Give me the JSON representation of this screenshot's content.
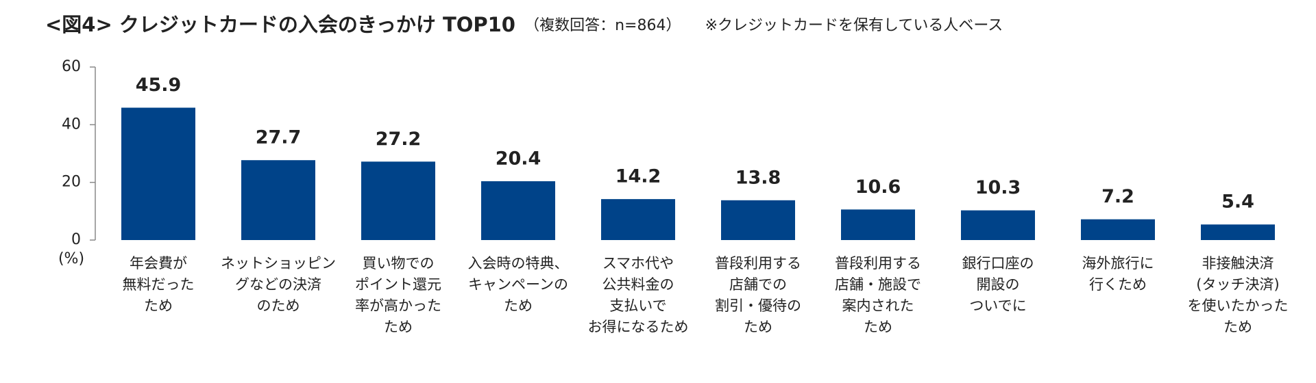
{
  "chart_data": {
    "type": "bar",
    "title": "<図4> クレジットカードの入会のきっかけ TOP10",
    "subtitle": "（複数回答：n=864）",
    "note": "※クレジットカードを保有している人ベース",
    "y_label": "(%)",
    "categories": [
      [
        "年会費が",
        "無料だった",
        "ため"
      ],
      [
        "ネットショッピン",
        "グなどの決済",
        "のため"
      ],
      [
        "買い物での",
        "ポイント還元",
        "率が高かった",
        "ため"
      ],
      [
        "入会時の特典、",
        "キャンペーンの",
        "ため"
      ],
      [
        "スマホ代や",
        "公共料金の",
        "支払いで",
        "お得になるため"
      ],
      [
        "普段利用する",
        "店舗での",
        "割引・優待の",
        "ため"
      ],
      [
        "普段利用する",
        "店舗・施設で",
        "案内された",
        "ため"
      ],
      [
        "銀行口座の",
        "開設の",
        "ついでに"
      ],
      [
        "海外旅行に",
        "行くため"
      ],
      [
        "非接触決済",
        "(タッチ決済)",
        "を使いたかった",
        "ため"
      ]
    ],
    "values": [
      45.9,
      27.7,
      27.2,
      20.4,
      14.2,
      13.8,
      10.6,
      10.3,
      7.2,
      5.4
    ],
    "color": "#004389",
    "label_color": "#1f4e8c",
    "ylim": [
      0,
      60
    ],
    "yticks": [
      0,
      20,
      40,
      60
    ]
  }
}
